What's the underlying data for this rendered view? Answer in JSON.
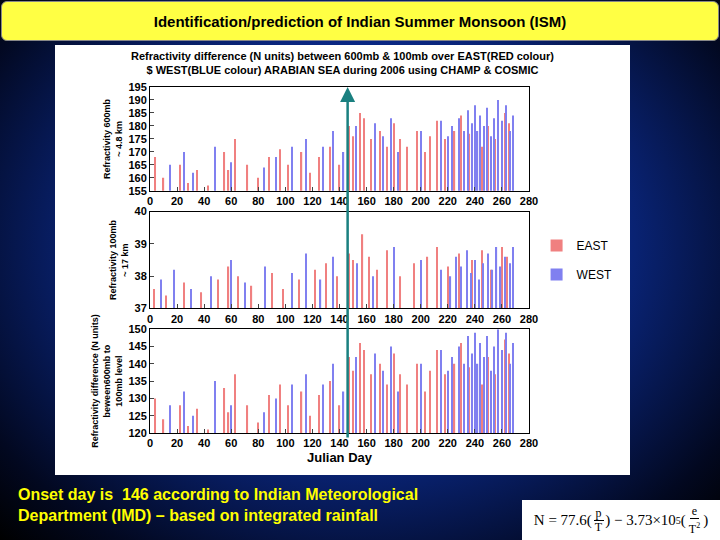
{
  "slide_title": "Identification/prediction of Indian Summer Monsoon (ISM)",
  "footnote": [
    "Onset day is  146 according to Indian Meteorological",
    "Department (IMD) – based on integrated rainfall"
  ],
  "formula": {
    "lhs": "N = 77.6(",
    "p": "p",
    "T": "T",
    "mid": ") − 3.73×10",
    "exp": "5",
    "open": "(",
    "e": "e",
    "T2": "T",
    "sq": "2",
    "close": ")"
  },
  "chart_data": {
    "type": "bar",
    "title": [
      "Refractivity difference (N units) between 600mb & 100mb over EAST(RED colour)",
      "$ WEST(BLUE colour) ARABIAN SEA during 2006 using CHAMP & COSMIC"
    ],
    "xlabel": "Julian Day",
    "xlim": [
      0,
      280
    ],
    "xticks": [
      0,
      20,
      40,
      60,
      80,
      100,
      120,
      140,
      160,
      180,
      200,
      220,
      240,
      260,
      280
    ],
    "grid": false,
    "legend": "right",
    "annotations": [
      {
        "x": 146,
        "color": "#1a8080"
      }
    ],
    "panels": [
      {
        "ylabel": [
          "Refractivity 600mb",
          "~ 4.8 km"
        ],
        "ylim": [
          155,
          195
        ],
        "yticks": [
          155,
          160,
          165,
          170,
          175,
          180,
          185,
          190,
          195
        ],
        "series": [
          {
            "name": "EAST",
            "color": "#f08080",
            "x": [
              4,
              10,
              22,
              28,
              35,
              43,
              55,
              58,
              63,
              72,
              80,
              88,
              96,
              102,
              112,
              118,
              125,
              133,
              140,
              147,
              150,
              155,
              158,
              163,
              170,
              175,
              180,
              185,
              190,
              197,
              203,
              207,
              212,
              218,
              225,
              230,
              236,
              245,
              250,
              255,
              262,
              265
            ],
            "values": [
              168,
              160,
              165,
              158,
              163,
              157,
              170,
              163,
              175,
              165,
              160,
              168,
              171,
              165,
              170,
              162,
              168,
              172,
              165,
              180,
              176,
              185,
              183,
              175,
              178,
              172,
              181,
              175,
              172,
              178,
              170,
              176,
              182,
              175,
              178,
              184,
              177,
              172,
              180,
              175,
              185,
              181
            ]
          },
          {
            "name": "WEST",
            "color": "#8080f0",
            "x": [
              15,
              25,
              32,
              48,
              60,
              84,
              93,
              105,
              115,
              128,
              135,
              143,
              152,
              166,
              172,
              178,
              183,
              200,
              215,
              220,
              223,
              228,
              232,
              235,
              238,
              240,
              242,
              244,
              247,
              249,
              252,
              254,
              257,
              260,
              263,
              266,
              268
            ],
            "values": [
              165,
              170,
              162,
              172,
              166,
              164,
              168,
              172,
              175,
              172,
              178,
              170,
              180,
              181,
              176,
              183,
              170,
              178,
              182,
              176,
              180,
              183,
              178,
              186,
              181,
              188,
              178,
              184,
              180,
              187,
              176,
              183,
              190,
              182,
              188,
              178,
              184
            ]
          }
        ]
      },
      {
        "ylabel": [
          "Refractivity 100mb",
          "~ 17 km"
        ],
        "ylim": [
          37,
          40
        ],
        "yticks": [
          37,
          38,
          39,
          40
        ],
        "series": [
          {
            "name": "EAST",
            "color": "#f08080",
            "x": [
              3,
              12,
              25,
              38,
              50,
              58,
              65,
              75,
              90,
              98,
              110,
              122,
              130,
              138,
              147,
              150,
              157,
              162,
              168,
              175,
              185,
              195,
              205,
              212,
              220,
              228,
              238,
              245,
              252,
              260,
              264
            ],
            "values": [
              37.6,
              37.4,
              37.8,
              37.5,
              37.9,
              38.3,
              38.0,
              37.7,
              38.1,
              37.6,
              37.9,
              38.2,
              38.4,
              38.0,
              38.7,
              38.5,
              39.3,
              38.6,
              38.2,
              38.8,
              38.0,
              38.4,
              38.6,
              38.9,
              38.3,
              38.7,
              38.5,
              38.8,
              38.2,
              38.9,
              38.6
            ]
          },
          {
            "name": "WEST",
            "color": "#8080f0",
            "x": [
              8,
              18,
              30,
              45,
              60,
              70,
              85,
              105,
              115,
              126,
              135,
              153,
              165,
              180,
              200,
              215,
              222,
              226,
              230,
              234,
              237,
              240,
              243,
              246,
              250,
              253,
              256,
              259,
              262,
              266,
              268
            ],
            "values": [
              37.9,
              38.2,
              37.6,
              38.0,
              38.5,
              37.8,
              38.3,
              38.1,
              38.7,
              37.9,
              38.6,
              38.4,
              38.0,
              38.9,
              38.5,
              38.2,
              38.0,
              38.6,
              38.3,
              38.8,
              38.1,
              38.5,
              37.9,
              38.4,
              38.7,
              38.2,
              38.9,
              38.3,
              38.6,
              38.4,
              38.9
            ]
          }
        ]
      },
      {
        "ylabel": [
          "Refractivity difference (N units)",
          "beween600mb to",
          "100mb level"
        ],
        "ylim": [
          120,
          150
        ],
        "yticks": [
          120,
          125,
          130,
          135,
          140,
          145,
          150
        ],
        "series": [
          {
            "name": "EAST",
            "color": "#f08080",
            "x": [
              4,
              10,
              22,
              28,
              35,
              43,
              55,
              58,
              63,
              72,
              80,
              88,
              96,
              102,
              112,
              118,
              125,
              133,
              140,
              147,
              150,
              155,
              158,
              163,
              170,
              175,
              180,
              185,
              190,
              197,
              203,
              207,
              212,
              218,
              225,
              230,
              236,
              245,
              250,
              255,
              262,
              265
            ],
            "values": [
              130,
              124,
              128,
              122,
              127,
              121,
              133,
              126,
              137,
              128,
              123,
              131,
              134,
              128,
              132,
              125,
              131,
              135,
              128,
              142,
              138,
              146,
              144,
              137,
              140,
              134,
              143,
              137,
              134,
              140,
              132,
              138,
              144,
              137,
              140,
              146,
              139,
              134,
              142,
              137,
              147,
              143
            ]
          },
          {
            "name": "WEST",
            "color": "#8080f0",
            "x": [
              15,
              25,
              32,
              48,
              60,
              84,
              93,
              105,
              115,
              128,
              135,
              143,
              152,
              166,
              172,
              178,
              183,
              200,
              215,
              220,
              223,
              228,
              232,
              235,
              238,
              240,
              242,
              244,
              247,
              249,
              252,
              254,
              257,
              260,
              263,
              266,
              268
            ],
            "values": [
              128,
              132,
              125,
              135,
              128,
              126,
              130,
              134,
              137,
              134,
              140,
              132,
              142,
              143,
              138,
              145,
              132,
              140,
              144,
              138,
              142,
              145,
              140,
              148,
              143,
              149,
              140,
              146,
              142,
              148,
              138,
              145,
              150,
              144,
              149,
              140,
              146
            ]
          }
        ]
      }
    ]
  }
}
